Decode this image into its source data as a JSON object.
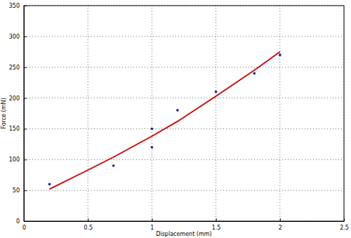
{
  "chart_data": {
    "type": "scatter",
    "x_label": "Displacement (mm)",
    "y_label": "Force (mN)",
    "xlim": [
      0,
      2.5
    ],
    "xticks": [
      0,
      0.5,
      1,
      1.5,
      2,
      2.5
    ],
    "ylim": [
      0,
      350
    ],
    "yticks": [
      0,
      50,
      100,
      150,
      200,
      250,
      300,
      350
    ],
    "grid": true,
    "series": [
      {
        "type": "scatter",
        "color": "#1a1a8c",
        "marker": "dot",
        "x": [
          0.2,
          0.7,
          1.0,
          1.0,
          1.2,
          1.5,
          1.8,
          2.0
        ],
        "values": [
          60,
          90,
          150,
          120,
          180,
          210,
          240,
          270
        ]
      },
      {
        "type": "line",
        "color": "#cc0000",
        "line_style": "solid",
        "x": [
          0.2,
          0.5,
          0.7,
          1.0,
          1.2,
          1.5,
          1.8,
          2.0
        ],
        "values": [
          52,
          83,
          104,
          138,
          162,
          203,
          245,
          275
        ]
      }
    ]
  }
}
